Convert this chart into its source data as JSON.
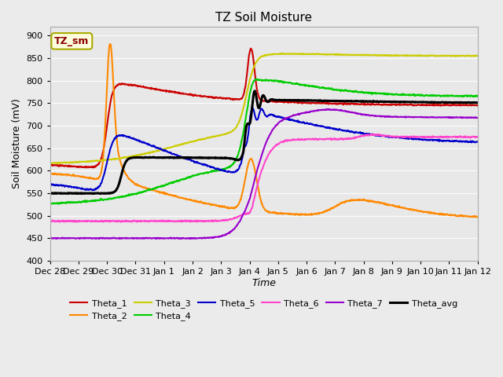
{
  "title": "TZ Soil Moisture",
  "xlabel": "Time",
  "ylabel": "Soil Moisture (mV)",
  "ylim": [
    400,
    920
  ],
  "yticks": [
    400,
    450,
    500,
    550,
    600,
    650,
    700,
    750,
    800,
    850,
    900
  ],
  "background_color": "#ebebeb",
  "plot_bg_color": "#e8e8e8",
  "legend_label": "TZ_sm",
  "series_colors": {
    "Theta_1": "#cc0000",
    "Theta_2": "#ff8800",
    "Theta_3": "#cccc00",
    "Theta_4": "#00cc00",
    "Theta_5": "#0000cc",
    "Theta_6": "#ff44cc",
    "Theta_7": "#9900cc",
    "Theta_avg": "#000000"
  },
  "xtick_labels": [
    "Dec 28",
    "Dec 29",
    "Dec 30",
    "Dec 31",
    "Jan 1",
    "Jan 2",
    "Jan 3",
    "Jan 4",
    "Jan 5",
    "Jan 6",
    "Jan 7",
    "Jan 8",
    "Jan 9",
    "Jan 10",
    "Jan 11",
    "Jan 12"
  ],
  "num_points": 1000
}
